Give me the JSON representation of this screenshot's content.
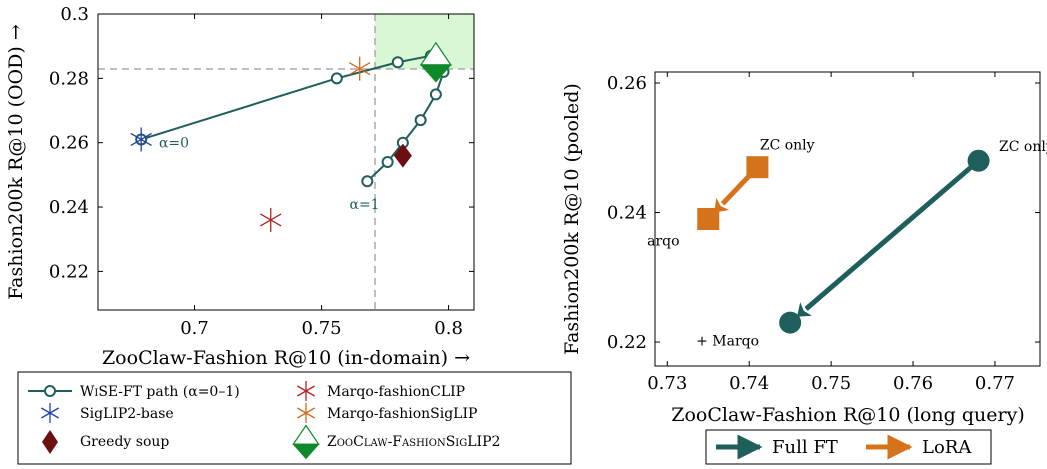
{
  "chart_data": [
    {
      "type": "scatter",
      "title": "",
      "xlabel": "ZooClaw-Fashion R@10 (in-domain) →",
      "ylabel": "Fashion200k R@10 (OOD) →",
      "xlim": [
        0.662,
        0.81
      ],
      "ylim": [
        0.208,
        0.3
      ],
      "xticks": [
        0.7,
        0.75,
        0.8
      ],
      "xtick_labels": [
        "0.7",
        "0.75",
        "0.8"
      ],
      "yticks": [
        0.22,
        0.24,
        0.26,
        0.28,
        0.3
      ],
      "ytick_labels": [
        "0.22",
        "0.24",
        "0.26",
        "0.28",
        "0.3"
      ],
      "grid": false,
      "legend_position": "bottom",
      "reference_lines": {
        "x": 0.765,
        "y": 0.283
      },
      "highlight_region": {
        "x": [
          0.765,
          0.81
        ],
        "y": [
          0.283,
          0.3
        ]
      },
      "series": [
        {
          "name": "WiSE-FT path (α=0–1)",
          "kind": "line",
          "color": "#1f5f5b",
          "x": [
            0.679,
            0.756,
            0.78,
            0.793,
            0.798,
            0.795,
            0.789,
            0.782,
            0.776,
            0.768
          ],
          "y": [
            0.261,
            0.28,
            0.285,
            0.287,
            0.282,
            0.275,
            0.267,
            0.26,
            0.254,
            0.248
          ]
        },
        {
          "name": "SigLIP2-base",
          "kind": "asterisk",
          "color": "#1f3faf",
          "x": [
            0.679
          ],
          "y": [
            0.261
          ]
        },
        {
          "name": "Greedy soup",
          "kind": "diamond",
          "color": "#6b1010",
          "x": [
            0.782
          ],
          "y": [
            0.256
          ]
        },
        {
          "name": "Marqo-fashionCLIP",
          "kind": "asterisk",
          "color": "#b22222",
          "x": [
            0.73
          ],
          "y": [
            0.236
          ]
        },
        {
          "name": "Marqo-fashionSigLIP",
          "kind": "asterisk",
          "color": "#d2691e",
          "x": [
            0.765
          ],
          "y": [
            0.283
          ]
        },
        {
          "name": "ZooClaw-FashionSigLIP2",
          "kind": "triangle-pair",
          "color": "#0f8a2a",
          "x": [
            0.795
          ],
          "y": [
            0.285
          ]
        }
      ],
      "annotations": [
        {
          "text": "α=0",
          "x": 0.686,
          "y": 0.26
        },
        {
          "text": "α=1",
          "x": 0.761,
          "y": 0.241
        }
      ],
      "legend": {
        "left": [
          {
            "label": "WiSE-FT path (α=0–1)",
            "marker": "circle-line",
            "color": "#1f5f5b"
          },
          {
            "label": "SigLIP2-base",
            "marker": "asterisk",
            "color": "#1f3faf"
          },
          {
            "label": "Greedy soup",
            "marker": "diamond",
            "color": "#6b1010"
          }
        ],
        "right": [
          {
            "label": "Marqo-fashionCLIP",
            "marker": "asterisk",
            "color": "#b22222"
          },
          {
            "label": "Marqo-fashionSigLIP",
            "marker": "asterisk",
            "color": "#d2691e"
          },
          {
            "label": "ZooClaw-FashionSigLIP2",
            "marker": "triangle-pair",
            "color": "#0f8a2a"
          }
        ]
      }
    },
    {
      "type": "scatter",
      "title": "",
      "xlabel": "ZooClaw-Fashion R@10 (long query)",
      "ylabel": "Fashion200k R@10 (pooled)",
      "xlim": [
        0.7285,
        0.7755
      ],
      "ylim": [
        0.2163,
        0.2617
      ],
      "xticks": [
        0.73,
        0.74,
        0.75,
        0.76,
        0.77
      ],
      "xtick_labels": [
        "0.73",
        "0.74",
        "0.75",
        "0.76",
        "0.77"
      ],
      "yticks": [
        0.22,
        0.24,
        0.26
      ],
      "ytick_labels": [
        "0.22",
        "0.24",
        "0.26"
      ],
      "grid": false,
      "legend_position": "bottom",
      "series": [
        {
          "name": "Full FT",
          "kind": "arrow",
          "marker": "circle",
          "color": "#1f5f5b",
          "x": [
            0.768,
            0.745
          ],
          "y": [
            0.248,
            0.223
          ]
        },
        {
          "name": "LoRA",
          "kind": "arrow",
          "marker": "square",
          "color": "#d5731a",
          "x": [
            0.741,
            0.735
          ],
          "y": [
            0.247,
            0.239
          ]
        }
      ],
      "annotations": [
        {
          "text": "ZC only",
          "x": 0.7705,
          "y": 0.2503
        },
        {
          "text": "+ Marqo",
          "x": 0.7412,
          "y": 0.2202
        },
        {
          "text": "ZC only",
          "x": 0.7413,
          "y": 0.2505
        },
        {
          "text": "arqo",
          "x": 0.7315,
          "y": 0.2357
        }
      ],
      "legend": [
        {
          "label": "Full FT",
          "color": "#1f5f5b"
        },
        {
          "label": "LoRA",
          "color": "#d5731a"
        }
      ]
    }
  ]
}
